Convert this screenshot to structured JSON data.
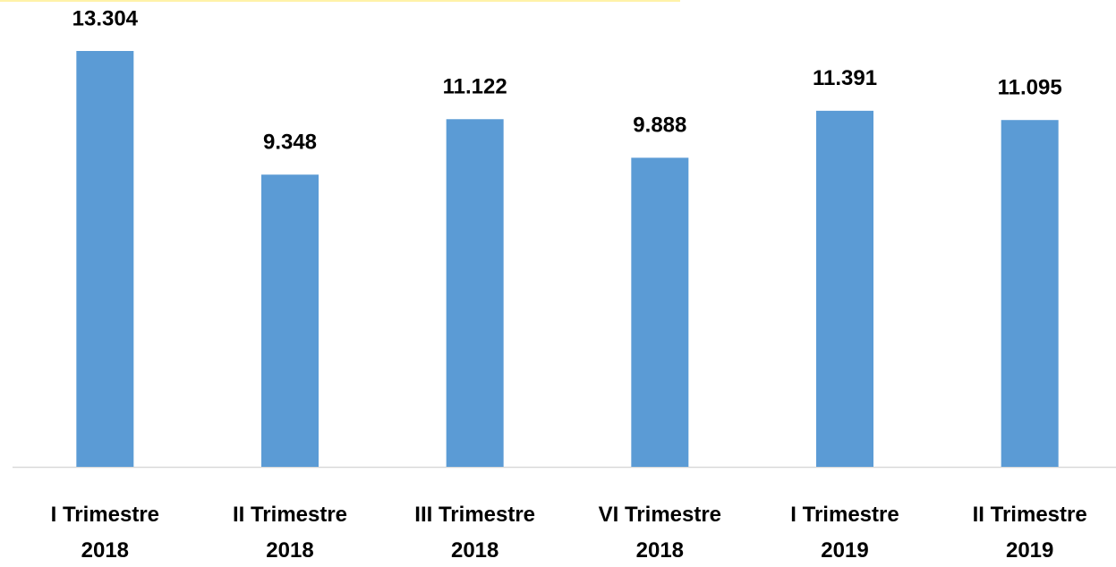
{
  "chart_data": {
    "type": "bar",
    "categories": [
      "I Trimestre 2018",
      "II Trimestre 2018",
      "III Trimestre 2018",
      "VI Trimestre 2018",
      "I Trimestre 2019",
      "II Trimestre 2019"
    ],
    "values": [
      13304,
      9348,
      11122,
      9888,
      11391,
      11095
    ],
    "value_labels": [
      "13.304",
      "9.348",
      "11.122",
      "9.888",
      "11.391",
      "11.095"
    ],
    "color": "#5b9bd5"
  }
}
